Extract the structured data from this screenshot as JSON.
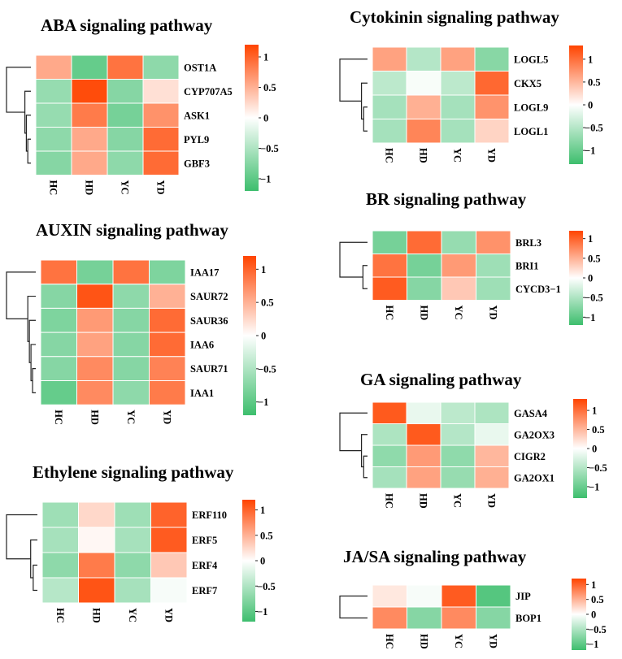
{
  "colors": {
    "low": "#3DBE6D",
    "mid": "#FFFFFF",
    "high": "#FF4400",
    "dendrogram": "#222222"
  },
  "chart_data": [
    {
      "type": "heatmap",
      "title": "ABA signaling pathway",
      "columns": [
        "HC",
        "HD",
        "YC",
        "YD"
      ],
      "rows": [
        "OST1A",
        "CYP707A5",
        "ASK1",
        "PYL9",
        "GBF3"
      ],
      "values": [
        [
          0.55,
          -0.95,
          0.9,
          -0.7
        ],
        [
          -0.65,
          1.15,
          -0.75,
          0.2
        ],
        [
          -0.65,
          0.85,
          -0.85,
          0.7
        ],
        [
          -0.7,
          0.55,
          -0.75,
          0.95
        ],
        [
          -0.75,
          0.55,
          -0.7,
          0.95
        ]
      ],
      "legend_ticks": [
        "1",
        "0.5",
        "0",
        "−0.5",
        "−1"
      ],
      "legend_range": [
        -1.2,
        1.2
      ]
    },
    {
      "type": "heatmap",
      "title": "AUXIN signaling pathway",
      "columns": [
        "HC",
        "HD",
        "YC",
        "YD"
      ],
      "rows": [
        "IAA17",
        "SAUR72",
        "SAUR36",
        "IAA6",
        "SAUR71",
        "IAA1"
      ],
      "values": [
        [
          0.9,
          -0.85,
          0.9,
          -0.8
        ],
        [
          -0.75,
          1.1,
          -0.7,
          0.5
        ],
        [
          -0.8,
          0.65,
          -0.75,
          0.95
        ],
        [
          -0.75,
          0.6,
          -0.75,
          0.95
        ],
        [
          -0.75,
          0.75,
          -0.75,
          0.8
        ],
        [
          -0.95,
          0.75,
          -0.7,
          0.85
        ]
      ],
      "legend_ticks": [
        "1",
        "0.5",
        "0",
        "−0.5",
        "−1"
      ],
      "legend_range": [
        -1.2,
        1.2
      ]
    },
    {
      "type": "heatmap",
      "title": "Ethylene signaling pathway",
      "columns": [
        "HC",
        "HD",
        "YC",
        "YD"
      ],
      "rows": [
        "ERF110",
        "ERF5",
        "ERF4",
        "ERF7"
      ],
      "values": [
        [
          -0.6,
          0.25,
          -0.6,
          1.0
        ],
        [
          -0.55,
          0.05,
          -0.55,
          1.05
        ],
        [
          -0.7,
          0.85,
          -0.7,
          0.35
        ],
        [
          -0.45,
          1.1,
          -0.55,
          -0.05
        ]
      ],
      "legend_ticks": [
        "1",
        "0.5",
        "0",
        "−0.5",
        "−1"
      ],
      "legend_range": [
        -1.2,
        1.2
      ]
    },
    {
      "type": "heatmap",
      "title": "Cytokinin signaling pathway",
      "columns": [
        "HC",
        "HD",
        "YC",
        "YD"
      ],
      "rows": [
        "LOGL5",
        "CKX5",
        "LOGL9",
        "LOGL1"
      ],
      "values": [
        [
          0.65,
          -0.5,
          0.65,
          -0.8
        ],
        [
          -0.45,
          -0.05,
          -0.45,
          1.05
        ],
        [
          -0.6,
          0.55,
          -0.6,
          0.75
        ],
        [
          -0.6,
          0.85,
          -0.6,
          0.3
        ]
      ],
      "legend_ticks": [
        "1",
        "0.5",
        "0",
        "−0.5",
        "−1"
      ],
      "legend_range": [
        -1.3,
        1.3
      ]
    },
    {
      "type": "heatmap",
      "title": "BR signaling pathway",
      "columns": [
        "HC",
        "HD",
        "YC",
        "YD"
      ],
      "rows": [
        "BRL3",
        "BRI1",
        "CYCD3−1"
      ],
      "values": [
        [
          -0.85,
          0.95,
          -0.65,
          0.7
        ],
        [
          0.9,
          -0.85,
          0.65,
          -0.6
        ],
        [
          1.05,
          -0.75,
          0.35,
          -0.6
        ]
      ],
      "legend_ticks": [
        "1",
        "0.5",
        "0",
        "−0.5",
        "−1"
      ],
      "legend_range": [
        -1.2,
        1.2
      ]
    },
    {
      "type": "heatmap",
      "title": "GA signaling pathway",
      "columns": [
        "HC",
        "HD",
        "YC",
        "YD"
      ],
      "rows": [
        "GASA4",
        "GA2OX3",
        "CIGR2",
        "GA2OX1"
      ],
      "values": [
        [
          1.15,
          -0.15,
          -0.45,
          -0.55
        ],
        [
          -0.55,
          1.15,
          -0.5,
          -0.15
        ],
        [
          -0.75,
          0.7,
          -0.75,
          0.5
        ],
        [
          -0.6,
          0.65,
          -0.7,
          0.55
        ]
      ],
      "legend_ticks": [
        "1",
        "0.5",
        "0",
        "−0.5",
        "−1"
      ],
      "legend_range": [
        -1.3,
        1.3
      ]
    },
    {
      "type": "heatmap",
      "title": "JA/SA signaling pathway",
      "columns": [
        "HC",
        "HD",
        "YC",
        "YD"
      ],
      "rows": [
        "JIP",
        "BOP1"
      ],
      "values": [
        [
          0.15,
          -0.05,
          1.05,
          -1.05
        ],
        [
          0.75,
          -0.75,
          0.75,
          -0.75
        ]
      ],
      "legend_ticks": [
        "1",
        "0.5",
        "0",
        "−0.5",
        "−1"
      ],
      "legend_range": [
        -1.2,
        1.2
      ]
    }
  ]
}
